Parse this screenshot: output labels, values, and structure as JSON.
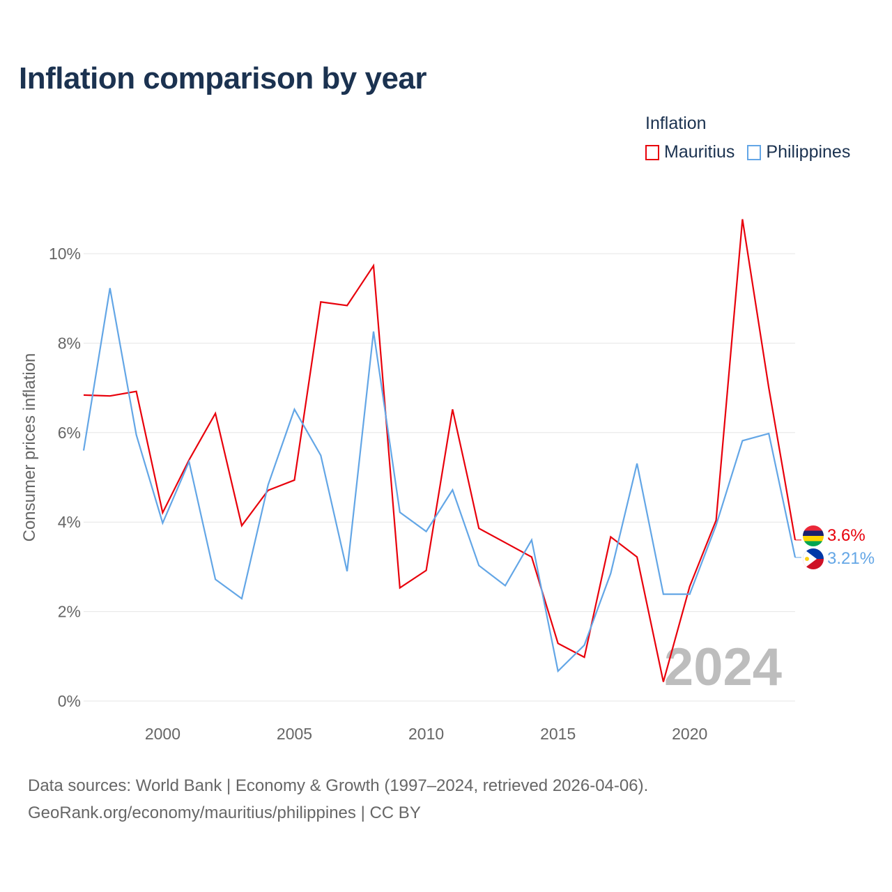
{
  "title": "Inflation comparison by year",
  "legend": {
    "title": "Inflation",
    "items": [
      {
        "label": "Mauritius",
        "color": "#e8000b"
      },
      {
        "label": "Philippines",
        "color": "#63a6e6"
      }
    ]
  },
  "source": {
    "line1": "Data sources: World Bank | Economy & Growth (1997–2024, retrieved 2026-04-06).",
    "line2": "GeoRank.org/economy/mauritius/philippines | CC BY"
  },
  "chart_data": {
    "type": "line",
    "title": "Inflation comparison by year",
    "xlabel": "",
    "ylabel": "Consumer prices inflation",
    "xlim": [
      1997,
      2024
    ],
    "ylim": [
      0,
      10
    ],
    "yticks": [
      0,
      2,
      4,
      6,
      8,
      10
    ],
    "ytick_labels": [
      "0%",
      "2%",
      "4%",
      "6%",
      "8%",
      "10%"
    ],
    "xticks": [
      2000,
      2005,
      2010,
      2015,
      2020
    ],
    "xtick_labels": [
      "2000",
      "2005",
      "2010",
      "2015",
      "2020"
    ],
    "watermark_year": "2024",
    "x": [
      1997,
      1998,
      1999,
      2000,
      2001,
      2002,
      2003,
      2004,
      2005,
      2006,
      2007,
      2008,
      2009,
      2010,
      2011,
      2012,
      2013,
      2014,
      2015,
      2016,
      2017,
      2018,
      2019,
      2020,
      2021,
      2022,
      2023,
      2024
    ],
    "series": [
      {
        "name": "Mauritius",
        "color": "#e8000b",
        "end_label": "3.6%",
        "values": [
          6.84,
          6.82,
          6.92,
          4.21,
          5.39,
          6.43,
          3.92,
          4.71,
          4.94,
          8.92,
          8.84,
          9.73,
          2.53,
          2.92,
          6.52,
          3.86,
          3.54,
          3.22,
          1.29,
          0.98,
          3.67,
          3.22,
          0.43,
          2.56,
          4.04,
          10.77,
          7.0,
          3.6
        ]
      },
      {
        "name": "Philippines",
        "color": "#63a6e6",
        "end_label": "3.21%",
        "values": [
          5.6,
          9.23,
          5.95,
          3.98,
          5.35,
          2.72,
          2.29,
          4.83,
          6.52,
          5.49,
          2.9,
          8.26,
          4.22,
          3.79,
          4.72,
          3.03,
          2.58,
          3.6,
          0.67,
          1.25,
          2.85,
          5.31,
          2.39,
          2.39,
          3.93,
          5.82,
          5.98,
          3.21
        ]
      }
    ]
  }
}
